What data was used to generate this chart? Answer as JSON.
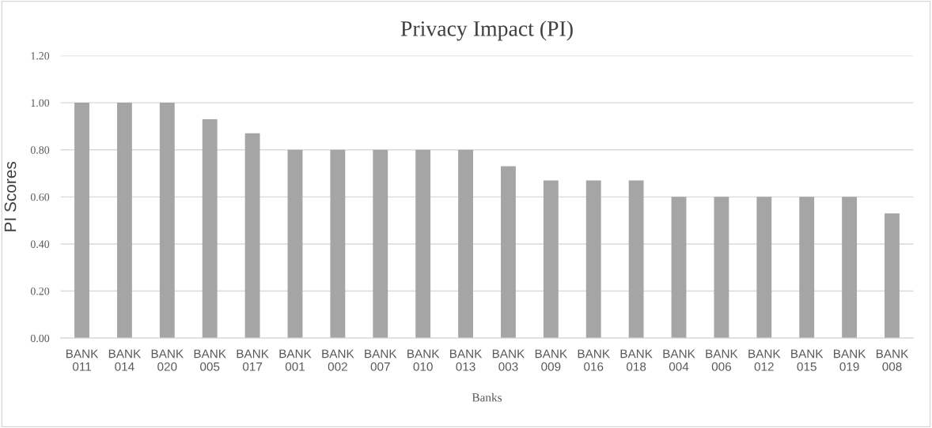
{
  "chart_data": {
    "type": "bar",
    "title": "Privacy Impact (PI)",
    "xlabel": "Banks",
    "ylabel": "PI Scores",
    "categories": [
      "BANK\n011",
      "BANK\n014",
      "BANK\n020",
      "BANK\n005",
      "BANK\n017",
      "BANK\n001",
      "BANK\n002",
      "BANK\n007",
      "BANK\n010",
      "BANK\n013",
      "BANK\n003",
      "BANK\n009",
      "BANK\n016",
      "BANK\n018",
      "BANK\n004",
      "BANK\n006",
      "BANK\n012",
      "BANK\n015",
      "BANK\n019",
      "BANK\n008"
    ],
    "values": [
      1.0,
      1.0,
      1.0,
      0.93,
      0.87,
      0.8,
      0.8,
      0.8,
      0.8,
      0.8,
      0.73,
      0.67,
      0.67,
      0.67,
      0.6,
      0.6,
      0.6,
      0.6,
      0.6,
      0.53
    ],
    "color": "#a5a5a5",
    "ylim": [
      0,
      1.2
    ],
    "yticks": [
      {
        "value": 0,
        "label": "0.00"
      },
      {
        "value": 0.2,
        "label": "0.20"
      },
      {
        "value": 0.4,
        "label": "0.40"
      },
      {
        "value": 0.6,
        "label": "0.60"
      },
      {
        "value": 0.8,
        "label": "0.80"
      },
      {
        "value": 1.0,
        "label": "1.00"
      },
      {
        "value": 1.2,
        "label": "1.20"
      }
    ],
    "grid": "y",
    "legend": false
  }
}
